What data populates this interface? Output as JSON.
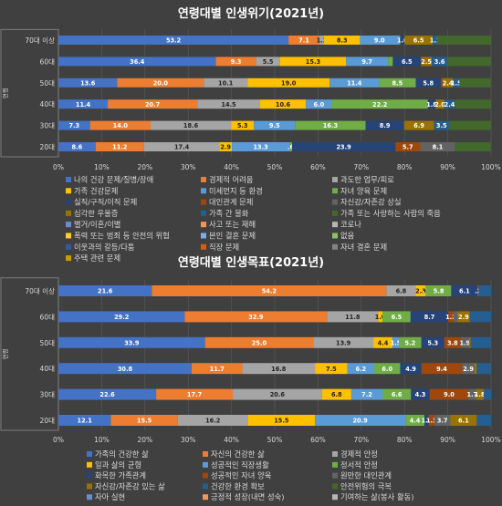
{
  "colors": [
    "#4472C4",
    "#ED7D31",
    "#A5A5A5",
    "#FFC000",
    "#5B9BD5",
    "#70AD47",
    "#264478",
    "#9E480E",
    "#636363",
    "#997300",
    "#255E91",
    "#43682B",
    "#698ED0",
    "#F1975A",
    "#B7B7B7",
    "#FFCD33",
    "#7CAFDD",
    "#8CC168",
    "#335AA1",
    "#D26012",
    "#848484",
    "#CC9A00",
    "#3284CC"
  ],
  "chart_data": [
    {
      "type": "bar",
      "stacked": "percent",
      "orientation": "horizontal",
      "title": "연령대별 인생위기(2021년)",
      "ylabel": "연령",
      "xlim": [
        0,
        100
      ],
      "x_ticks": [
        "0%",
        "10%",
        "20%",
        "30%",
        "40%",
        "50%",
        "60%",
        "70%",
        "80%",
        "90%",
        "100%"
      ],
      "categories": [
        "70대 이상",
        "60대",
        "50대",
        "40대",
        "30대",
        "20대"
      ],
      "series": [
        {
          "name": "나의 건강 문제/질병/장애",
          "values": [
            53.2,
            36.4,
            13.6,
            11.4,
            7.3,
            8.6
          ],
          "labels": [
            "53.2",
            "36.4",
            "13.6",
            "11.4",
            "7.3",
            "8.6"
          ]
        },
        {
          "name": "경제적 어려움",
          "values": [
            7.1,
            9.3,
            20.0,
            20.7,
            14.0,
            11.2
          ],
          "labels": [
            "7.1",
            "9.3",
            "20.0",
            "20.7",
            "14.0",
            "11.2"
          ]
        },
        {
          "name": "과도한 업무/피로",
          "values": [
            1.1,
            5.5,
            10.1,
            14.5,
            18.6,
            17.4
          ],
          "labels": [
            "1.1",
            "5.5",
            "10.1",
            "14.5",
            "18.6",
            "17.4"
          ]
        },
        {
          "name": "가족 건강문제",
          "values": [
            8.3,
            15.3,
            19.0,
            10.6,
            5.3,
            2.9
          ],
          "labels": [
            "8.3",
            "15.3",
            "19.0",
            "10.6",
            "5.3",
            "2.9"
          ]
        },
        {
          "name": "미세먼지 등 환경",
          "values": [
            9.0,
            9.7,
            11.4,
            6.0,
            9.5,
            13.3
          ],
          "labels": [
            "9.0",
            "9.7",
            "11.4",
            "6.0",
            "9.5",
            "13.3"
          ]
        },
        {
          "name": "자녀 양육 문제",
          "values": [
            0.3,
            1.1,
            8.5,
            22.2,
            16.3,
            0.6
          ],
          "labels": [
            "",
            "",
            "8.5",
            "22.2",
            "16.3",
            ".6"
          ]
        },
        {
          "name": "실직/구직/이직 문제",
          "values": [
            1.0,
            6.5,
            5.8,
            1.8,
            8.9,
            23.9
          ],
          "labels": [
            "1.0",
            "6.5",
            "5.8",
            "1.8",
            "8.9",
            "23.9"
          ]
        },
        {
          "name": "대인관계 문제",
          "values": [
            0.0,
            0.0,
            0.4,
            0.0,
            0.0,
            5.7
          ],
          "labels": [
            "",
            "",
            "",
            "",
            "",
            "5.7"
          ]
        },
        {
          "name": "자신감/자존감 상실",
          "values": [
            0.0,
            0.0,
            0.0,
            0.0,
            0.0,
            8.1
          ],
          "labels": [
            "",
            "",
            "",
            "",
            "",
            "8.1"
          ]
        },
        {
          "name": "심각한 우울증",
          "values": [
            6.5,
            2.5,
            2.4,
            2.0,
            6.9,
            0.0
          ],
          "labels": [
            "6.5",
            "2.5",
            "2.4",
            "2.0",
            "6.9",
            ""
          ]
        },
        {
          "name": "가족 간 불화",
          "values": [
            1.1,
            3.6,
            1.5,
            2.4,
            3.5,
            0.0
          ],
          "labels": [
            "1.1",
            "3.6",
            "1.5",
            "2.4",
            "3.5",
            ""
          ]
        },
        {
          "name": "가족 또는 사랑하는 사람의 죽음",
          "values": [
            12.4,
            10.1,
            7.3,
            8.4,
            9.7,
            8.2
          ],
          "labels": [
            "",
            "",
            "",
            "",
            "",
            ""
          ]
        }
      ],
      "legend": [
        "나의 건강 문제/질병/장애",
        "경제적 어려움",
        "과도한 업무/피로",
        "가족 건강문제",
        "미세먼지 등 환경",
        "자녀 양육 문제",
        "실직/구직/이직 문제",
        "대인관계 문제",
        "자신감/자존감 상실",
        "심각한 우울증",
        "가족 간 불화",
        "가족 또는 사랑하는 사람의 죽음",
        "별거/이혼/이별",
        "사고 또는 재해",
        "코로나",
        "폭력 또는 범죄 등 안전의 위협",
        "본인 결혼 문제",
        "없음",
        "이웃과의 갈등/다툼",
        "직장 문제",
        "자녀 결혼 문제",
        "주택 관련 문제"
      ],
      "legend_position": "bottom"
    },
    {
      "type": "bar",
      "stacked": "percent",
      "orientation": "horizontal",
      "title": "연령대별 인생목표(2021년)",
      "ylabel": "연령",
      "xlim": [
        0,
        100
      ],
      "x_ticks": [
        "0%",
        "10%",
        "20%",
        "30%",
        "40%",
        "50%",
        "60%",
        "70%",
        "80%",
        "90%",
        "100%"
      ],
      "categories": [
        "70대 이상",
        "60대",
        "50대",
        "40대",
        "30대",
        "20대"
      ],
      "series": [
        {
          "name": "가족의 건강한 삶",
          "values": [
            21.6,
            29.2,
            33.9,
            30.8,
            22.6,
            12.1
          ],
          "labels": [
            "21.6",
            "29.2",
            "33.9",
            "30.8",
            "22.6",
            "12.1"
          ]
        },
        {
          "name": "자신의 건강한 삶",
          "values": [
            54.2,
            32.9,
            25.0,
            11.7,
            17.7,
            15.5
          ],
          "labels": [
            "54.2",
            "32.9",
            "25.0",
            "11.7",
            "17.7",
            "15.5"
          ]
        },
        {
          "name": "경제적 안정",
          "values": [
            6.8,
            11.8,
            13.9,
            16.8,
            20.6,
            16.2
          ],
          "labels": [
            "6.8",
            "11.8",
            "13.9",
            "16.8",
            "20.6",
            "16.2"
          ]
        },
        {
          "name": "일과 삶의 균형",
          "values": [
            2.3,
            1.0,
            4.4,
            7.5,
            6.8,
            15.5
          ],
          "labels": [
            "2.3",
            "1.0",
            "4.4",
            "7.5",
            "6.8",
            "15.5"
          ]
        },
        {
          "name": "성공적인 직장생활",
          "values": [
            0.1,
            0.0,
            1.5,
            6.2,
            7.2,
            20.9
          ],
          "labels": [
            ".1",
            "",
            "1.5",
            "6.2",
            "7.2",
            "20.9"
          ]
        },
        {
          "name": "정서적 안정",
          "values": [
            5.8,
            6.5,
            5.2,
            6.0,
            6.6,
            4.4
          ],
          "labels": [
            "5.8",
            "6.5",
            "5.2",
            "6.0",
            "6.6",
            "4.4"
          ]
        },
        {
          "name": "화목한 가족관계",
          "values": [
            6.1,
            8.7,
            5.3,
            4.9,
            4.3,
            1.0
          ],
          "labels": [
            "6.1",
            "8.7",
            "5.3",
            "4.9",
            "4.3",
            "1.0"
          ]
        },
        {
          "name": "성공적인 자녀 양육",
          "values": [
            0.0,
            1.2,
            3.8,
            9.4,
            9.0,
            1.3
          ],
          "labels": [
            "",
            "1.2",
            "3.8",
            "9.4",
            "9.0",
            "1.3"
          ]
        },
        {
          "name": "원만한 대인관계",
          "values": [
            0.0,
            0.9,
            1.9,
            2.9,
            1.7,
            3.7
          ],
          "labels": [
            "",
            "",
            "1.9",
            "2.9",
            "1.7",
            "3.7"
          ]
        },
        {
          "name": "자신감/자존감 있는 삶",
          "values": [
            0.2,
            2.9,
            0.4,
            0.5,
            1.8,
            6.1
          ],
          "labels": [
            ".2",
            "2.9",
            "",
            "",
            "1.8",
            "6.1"
          ]
        },
        {
          "name": "건강한 환경 확보",
          "values": [
            2.9,
            4.9,
            4.7,
            3.3,
            1.7,
            3.3
          ],
          "labels": [
            "",
            "",
            "",
            "",
            "",
            ""
          ]
        }
      ],
      "legend": [
        "가족의 건강한 삶",
        "자신의 건강한 삶",
        "경제적 안정",
        "일과 삶의 균형",
        "성공적인 직장생활",
        "정서적 안정",
        "화목한 가족관계",
        "성공적인 자녀 양육",
        "원만한 대인관계",
        "자신감/자존감 있는 삶",
        "건강한 환경 확보",
        "안전위험의 극복",
        "자아 실현",
        "긍정적 성장(내면 성숙)",
        "기여하는 삶(봉사 활동)",
        "본인 결혼"
      ],
      "legend_position": "bottom"
    }
  ]
}
